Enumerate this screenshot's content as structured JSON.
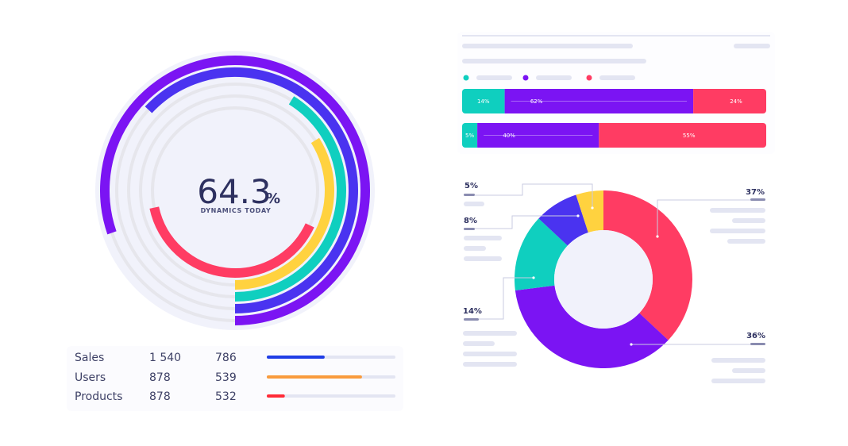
{
  "colors": {
    "teal": "#0fcfbf",
    "purple": "#7b14f3",
    "red": "#ff3c63",
    "yellow": "#ffd23f",
    "blue": "#4a33f0",
    "track": "#e6e6ec",
    "halo": "#f1f2fb",
    "placeholder": "#e3e5f2"
  },
  "gauge": {
    "value": "64.3",
    "unit": "%",
    "caption": "DYNAMICS TODAY",
    "rings": [
      {
        "color": "#7b14f3",
        "start_deg": 251,
        "sweep_deg": 289
      },
      {
        "color": "#4a33f0",
        "start_deg": 313,
        "sweep_deg": 227
      },
      {
        "color": "#0fcfbf",
        "start_deg": 32,
        "sweep_deg": 148
      },
      {
        "color": "#ffd23f",
        "start_deg": 58,
        "sweep_deg": 122
      },
      {
        "color": "#ff3c63",
        "start_deg": 115,
        "sweep_deg": 143
      }
    ]
  },
  "table": {
    "rows": [
      {
        "label": "Sales",
        "v1": "1 540",
        "v2": "786",
        "progress": 0.45,
        "color": "#1f3de6"
      },
      {
        "label": "Users",
        "v1": "878",
        "v2": "539",
        "progress": 0.74,
        "color": "#f99b3d"
      },
      {
        "label": "Products",
        "v1": "878",
        "v2": "532",
        "progress": 0.14,
        "color": "#ff2b37"
      }
    ]
  },
  "chart_data": [
    {
      "type": "bar",
      "orientation": "horizontal-stacked",
      "series_colors": [
        "#0fcfbf",
        "#7b14f3",
        "#ff3c63"
      ],
      "rows": [
        {
          "segments": [
            14,
            62,
            24
          ],
          "labels": [
            "14%",
            "62%",
            "24%"
          ]
        },
        {
          "segments": [
            5,
            40,
            55
          ],
          "labels": [
            "5%",
            "40%",
            "55%"
          ]
        }
      ]
    },
    {
      "type": "pie",
      "donut": true,
      "slices": [
        {
          "label": "37%",
          "value": 37,
          "color": "#ff3c63"
        },
        {
          "label": "36%",
          "value": 36,
          "color": "#7b14f3"
        },
        {
          "label": "14%",
          "value": 14,
          "color": "#0fcfbf"
        },
        {
          "label": "8%",
          "value": 8,
          "color": "#4a33f0"
        },
        {
          "label": "5%",
          "value": 5,
          "color": "#ffd23f"
        }
      ]
    }
  ]
}
